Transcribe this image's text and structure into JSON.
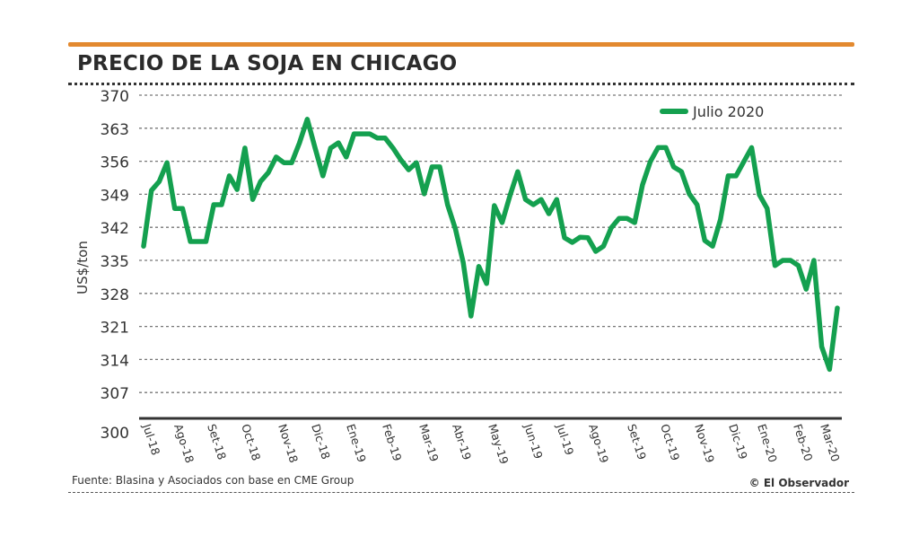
{
  "header": {
    "title": "PRECIO DE LA SOJA EN CHICAGO",
    "accent_color": "#e3892f"
  },
  "footer": {
    "source": "Fuente: Blasina y Asociados con base en CME Group",
    "credit": "© El Observador"
  },
  "chart_data": {
    "type": "line",
    "title": "PRECIO DE LA SOJA EN CHICAGO",
    "xlabel": "",
    "ylabel": "US$/ton",
    "ylim": [
      300,
      370
    ],
    "yticks": [
      300,
      307,
      314,
      321,
      328,
      335,
      342,
      349,
      356,
      363,
      370
    ],
    "grid": true,
    "legend_position": "top-right",
    "month_labels": [
      "Jul-18",
      "Ago-18",
      "Set-18",
      "Oct-18",
      "Nov-18",
      "Dic-18",
      "Ene-19",
      "Feb-19",
      "Mar-19",
      "Abr-19",
      "May-19",
      "Jun-19",
      "Jul-19",
      "Ago-19",
      "Set-19",
      "Oct-19",
      "Nov-19",
      "Dic-19",
      "Ene-20",
      "Feb-20",
      "Mar-20"
    ],
    "series": [
      {
        "name": "Julio 2020",
        "color": "#14a04f",
        "values": [
          338.0,
          349.8,
          351.7,
          355.7,
          346.0,
          346.0,
          339.0,
          339.0,
          339.0,
          346.8,
          346.8,
          352.9,
          350.0,
          358.8,
          347.9,
          351.7,
          353.6,
          356.9,
          355.7,
          355.7,
          359.9,
          364.9,
          358.8,
          352.9,
          358.8,
          359.9,
          356.9,
          361.8,
          361.8,
          361.8,
          360.9,
          360.9,
          358.8,
          356.3,
          354.2,
          355.7,
          349.1,
          354.8,
          354.8,
          346.8,
          341.7,
          334.6,
          323.2,
          333.7,
          330.1,
          346.6,
          343.0,
          348.7,
          353.8,
          347.9,
          346.8,
          347.9,
          344.9,
          347.9,
          339.8,
          338.8,
          339.9,
          339.8,
          336.9,
          338.0,
          341.9,
          343.9,
          343.9,
          343.0,
          351.0,
          355.9,
          358.9,
          358.9,
          354.8,
          353.8,
          349.1,
          346.8,
          339.2,
          338.0,
          343.6,
          352.9,
          352.9,
          355.9,
          358.9,
          348.9,
          346.0,
          333.9,
          335.0,
          335.0,
          333.9,
          328.9,
          335.0,
          316.7,
          311.9,
          324.9
        ]
      }
    ]
  }
}
